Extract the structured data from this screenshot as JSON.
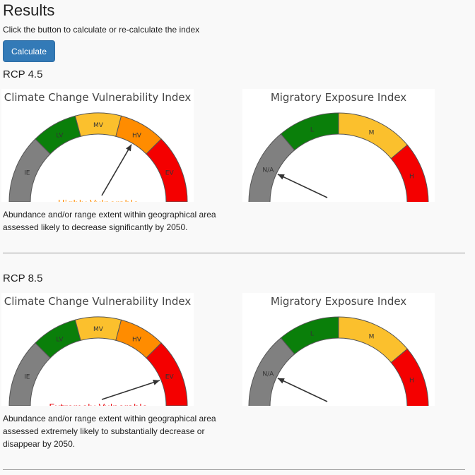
{
  "page": {
    "title": "Results",
    "instruction": "Click the button to calculate or re-calculate the index",
    "calculate_label": "Calculate"
  },
  "colors": {
    "gray": "#808080",
    "green": "#0a7f0a",
    "yellow": "#fbc02d",
    "orange": "#ff8c00",
    "red": "#f40000",
    "button": "#337ab7"
  },
  "sections": [
    {
      "label": "RCP 4.5",
      "ccvi": {
        "title": "Climate Change Vulnerability Index",
        "segments": [
          "IE",
          "LV",
          "MV",
          "HV",
          "EV"
        ],
        "selected_index": 3,
        "status": "Highly Vulnerable",
        "status_color": "#ff8c00"
      },
      "mei": {
        "title": "Migratory Exposure Index",
        "segments": [
          "N/A",
          "L",
          "M",
          "H"
        ],
        "selected_index": 0,
        "status": "N/A"
      },
      "description": "Abundance and/or range extent within geographical area assessed likely to decrease significantly by 2050."
    },
    {
      "label": "RCP 8.5",
      "ccvi": {
        "title": "Climate Change Vulnerability Index",
        "segments": [
          "IE",
          "LV",
          "MV",
          "HV",
          "EV"
        ],
        "selected_index": 4,
        "status": "Extremely Vulnerable",
        "status_color": "#e8151b"
      },
      "mei": {
        "title": "Migratory Exposure Index",
        "segments": [
          "N/A",
          "L",
          "M",
          "H"
        ],
        "selected_index": 0,
        "status": "N/A"
      },
      "description": "Abundance and/or range extent within geographical area assessed extremely likely to substantially decrease or disappear by 2050."
    }
  ]
}
